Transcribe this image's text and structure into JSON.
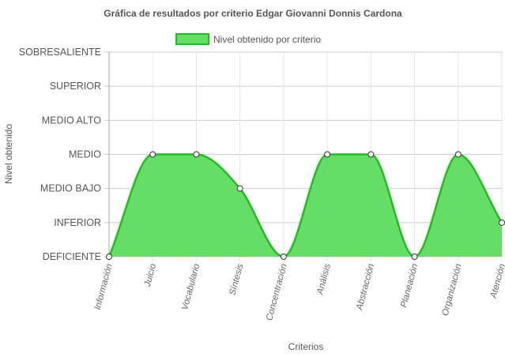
{
  "chart_data": {
    "type": "area",
    "title": "Gráfica de resultados por criterio Edgar Giovanni Donnis Cardona",
    "xlabel": "Criterios",
    "ylabel": "Nivel obtenido",
    "categories": [
      "Información",
      "Juicio",
      "Vocabulario",
      "Síntesis",
      "Concentración",
      "Análisis",
      "Abstracción",
      "Planeación",
      "Organización",
      "Atención"
    ],
    "y_levels": [
      "DEFICIENTE",
      "INFERIOR",
      "MEDIO BAJO",
      "MEDIO",
      "MEDIO ALTO",
      "SUPERIOR",
      "SOBRESALIENTE"
    ],
    "ylim": [
      0,
      6
    ],
    "series": [
      {
        "name": "Nivel obtenido por criterio",
        "values": [
          0,
          3,
          3,
          2,
          0,
          3,
          3,
          0,
          3,
          1
        ]
      }
    ],
    "grid": true,
    "legend_position": "top",
    "colors": {
      "fill": "#66dd66",
      "line": "#22bb22",
      "grid": "#cccccc",
      "point_fill": "#ffffff",
      "point_stroke": "#333333"
    }
  }
}
